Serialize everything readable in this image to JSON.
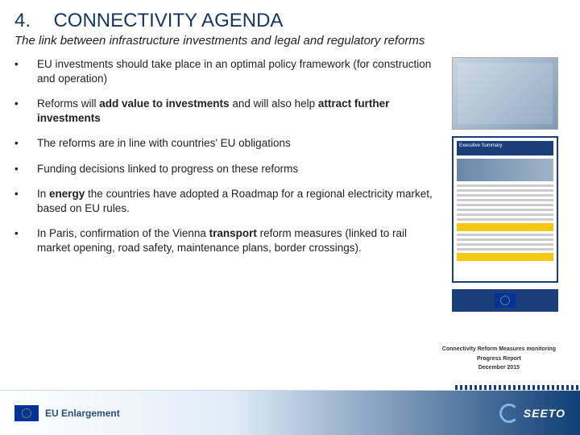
{
  "heading": {
    "num": "4.",
    "title": "CONNECTIVITY AGENDA"
  },
  "subtitle": "The link between infrastructure investments and legal and regulatory reforms",
  "bullets": [
    {
      "html": "EU investments should take place in an optimal policy framework (for construction and operation)"
    },
    {
      "html": "Reforms will <b>add value to investments</b> and will also help <b>attract further investments</b>"
    },
    {
      "html": "The reforms are in line with countries' EU obligations"
    },
    {
      "html": "Funding decisions linked to progress on these reforms"
    },
    {
      "html": "In <b>energy</b> the countries have adopted a Roadmap for a regional electricity market, based on EU rules."
    },
    {
      "html": "In Paris, confirmation of the Vienna <b>transport</b> reform measures (linked to rail market opening, road safety, maintenance plans, border crossings)."
    }
  ],
  "caption": {
    "line1": "Connectivity Reform Measures monitoring",
    "line2": "Progress Report",
    "line3": "December 2015"
  },
  "footer": {
    "left": "EU Enlargement",
    "right": "SEETO"
  },
  "side_doc": {
    "header": "Executive Summary"
  },
  "colors": {
    "heading": "#17365d",
    "footer_grad_end": "#0f3f76",
    "doc_border": "#1a3e7a",
    "highlight": "#f6c915"
  }
}
